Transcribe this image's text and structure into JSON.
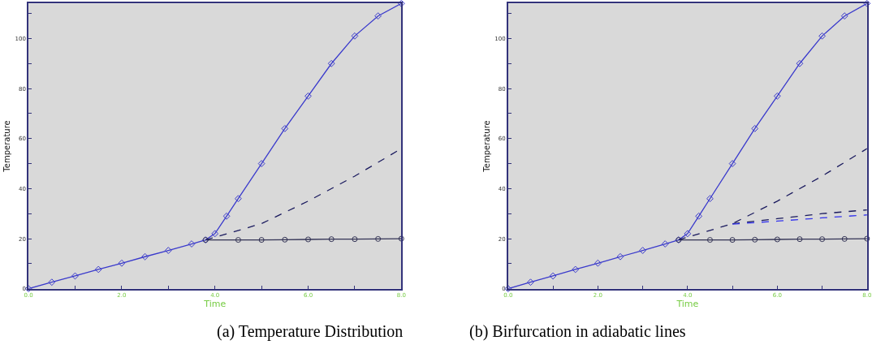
{
  "chart_data": [
    {
      "type": "line",
      "title": "(a) Temperature Distribution",
      "xlabel": "Time",
      "ylabel": "Temperature",
      "xlim": [
        0,
        8
      ],
      "ylim": [
        0,
        114
      ],
      "grid": false,
      "xticks": [
        {
          "value": 0,
          "label": "0.0"
        },
        {
          "value": 1,
          "label": null
        },
        {
          "value": 2,
          "label": "2.0"
        },
        {
          "value": 3,
          "label": null
        },
        {
          "value": 4,
          "label": "4.0"
        },
        {
          "value": 5,
          "label": null
        },
        {
          "value": 6,
          "label": "6.0"
        },
        {
          "value": 7,
          "label": null
        },
        {
          "value": 8,
          "label": "8.0"
        }
      ],
      "yticks": [
        0,
        {
          "value": 10,
          "label": null
        },
        20,
        {
          "value": 30,
          "label": null
        },
        40,
        {
          "value": 50,
          "label": null
        },
        60,
        {
          "value": 70,
          "label": null
        },
        80,
        {
          "value": 90,
          "label": null
        },
        100,
        {
          "value": 110,
          "label": null
        }
      ],
      "series": [
        {
          "color": "#3a3acc",
          "marker": "diamond",
          "line_style": "solid",
          "x": [
            0,
            0.5,
            1,
            1.5,
            2,
            2.5,
            3,
            3.5,
            3.8,
            4,
            4.25,
            4.5,
            5,
            5.5,
            6,
            6.5,
            7,
            7.5,
            8
          ],
          "values": [
            0,
            2.6,
            5.1,
            7.7,
            10.2,
            12.8,
            15.3,
            17.9,
            19.5,
            22,
            29,
            36,
            50,
            64,
            77,
            90,
            101,
            109,
            114
          ]
        },
        {
          "color": "#333355",
          "marker": "circle",
          "line_style": "solid",
          "x": [
            3.8,
            4.5,
            5,
            5.5,
            6,
            6.5,
            7,
            7.5,
            8
          ],
          "values": [
            19.5,
            19.5,
            19.5,
            19.6,
            19.7,
            19.8,
            19.8,
            19.9,
            20
          ]
        },
        {
          "color": "#1a1a5e",
          "marker": "none",
          "line_style": "dashed",
          "x": [
            3.8,
            5,
            6,
            7,
            8
          ],
          "values": [
            19.5,
            26,
            35,
            45,
            56
          ]
        }
      ]
    },
    {
      "type": "line",
      "title": "(b) Birfurcation in adiabatic lines",
      "xlabel": "Time",
      "ylabel": "Temperature",
      "xlim": [
        0,
        8
      ],
      "ylim": [
        0,
        114
      ],
      "grid": false,
      "xticks": [
        {
          "value": 0,
          "label": "0.0"
        },
        {
          "value": 1,
          "label": null
        },
        {
          "value": 2,
          "label": "2.0"
        },
        {
          "value": 3,
          "label": null
        },
        {
          "value": 4,
          "label": "4.0"
        },
        {
          "value": 5,
          "label": null
        },
        {
          "value": 6,
          "label": "6.0"
        },
        {
          "value": 7,
          "label": null
        },
        {
          "value": 8,
          "label": "8.0"
        }
      ],
      "yticks": [
        0,
        {
          "value": 10,
          "label": null
        },
        20,
        {
          "value": 30,
          "label": null
        },
        40,
        {
          "value": 50,
          "label": null
        },
        60,
        {
          "value": 70,
          "label": null
        },
        80,
        {
          "value": 90,
          "label": null
        },
        100,
        {
          "value": 110,
          "label": null
        }
      ],
      "series": [
        {
          "color": "#3a3acc",
          "marker": "diamond",
          "line_style": "solid",
          "x": [
            0,
            0.5,
            1,
            1.5,
            2,
            2.5,
            3,
            3.5,
            3.8,
            4,
            4.25,
            4.5,
            5,
            5.5,
            6,
            6.5,
            7,
            7.5,
            8
          ],
          "values": [
            0,
            2.6,
            5.1,
            7.7,
            10.2,
            12.8,
            15.3,
            17.9,
            19.5,
            22,
            29,
            36,
            50,
            64,
            77,
            90,
            101,
            109,
            114
          ]
        },
        {
          "color": "#333355",
          "marker": "circle",
          "line_style": "solid",
          "x": [
            3.8,
            4.5,
            5,
            5.5,
            6,
            6.5,
            7,
            7.5,
            8
          ],
          "values": [
            19.5,
            19.5,
            19.5,
            19.6,
            19.7,
            19.8,
            19.8,
            19.9,
            20
          ]
        },
        {
          "color": "#1a1a5e",
          "marker": "none",
          "line_style": "dashed",
          "x": [
            3.8,
            5,
            6,
            7,
            8
          ],
          "values": [
            19.5,
            26,
            35,
            45,
            56
          ]
        },
        {
          "color": "#1a1a5e",
          "marker": "none",
          "line_style": "dashed",
          "x": [
            5,
            6,
            7,
            8
          ],
          "values": [
            26,
            28,
            30,
            31.5
          ]
        },
        {
          "color": "#3333ee",
          "marker": "none",
          "line_style": "dashed",
          "x": [
            5,
            6,
            7,
            8
          ],
          "values": [
            25.8,
            27,
            28.3,
            29.5
          ]
        }
      ]
    }
  ]
}
